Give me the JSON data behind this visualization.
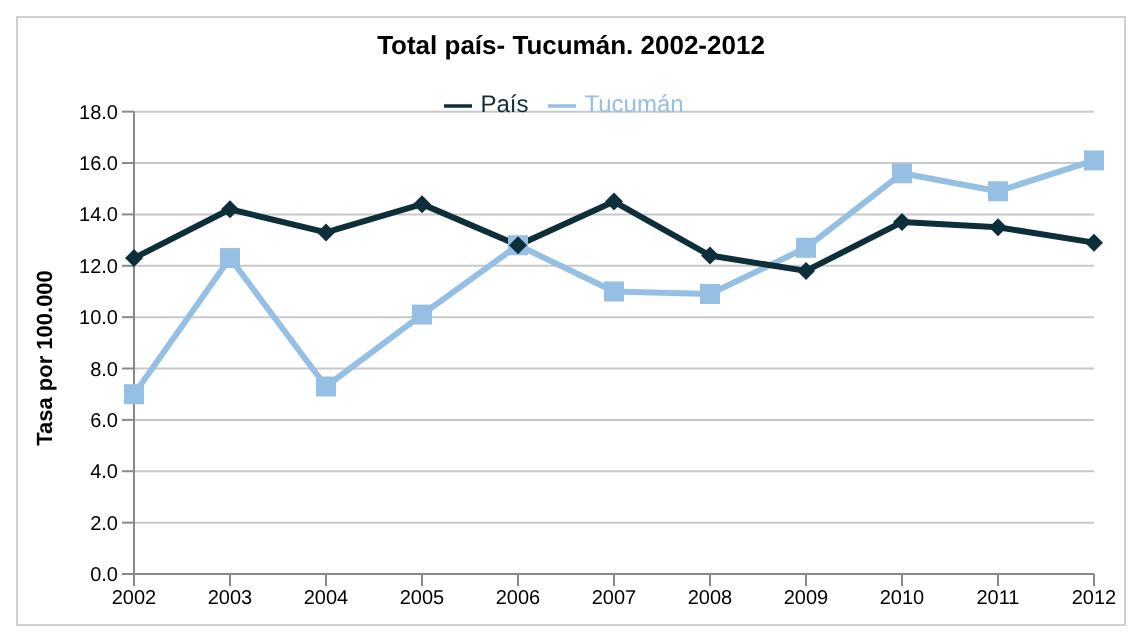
{
  "chart_data": {
    "type": "line",
    "title": "Total país- Tucumán. 2002-2012",
    "ylabel": "Tasa por 100.000",
    "categories": [
      "2002",
      "2003",
      "2004",
      "2005",
      "2006",
      "2007",
      "2008",
      "2009",
      "2010",
      "2011",
      "2012"
    ],
    "series": [
      {
        "name": "País",
        "color": "#0d2f3a",
        "marker": "diamond",
        "values": [
          12.3,
          14.2,
          13.3,
          14.4,
          12.8,
          14.5,
          12.4,
          11.8,
          13.7,
          13.5,
          12.9
        ]
      },
      {
        "name": "Tucumán",
        "color": "#95c0e4",
        "marker": "square",
        "values": [
          7.0,
          12.3,
          7.3,
          10.1,
          12.8,
          11.0,
          10.9,
          12.7,
          15.6,
          14.9,
          16.1
        ]
      }
    ],
    "ylim": [
      0,
      18
    ],
    "yticks": [
      {
        "value": 0,
        "label": "0.0"
      },
      {
        "value": 2,
        "label": "2.0"
      },
      {
        "value": 4,
        "label": "4.0"
      },
      {
        "value": 6,
        "label": "6.0"
      },
      {
        "value": 8,
        "label": "8.0"
      },
      {
        "value": 10,
        "label": "10.0"
      },
      {
        "value": 12,
        "label": "12.0"
      },
      {
        "value": 14,
        "label": "14.0"
      },
      {
        "value": 16,
        "label": "16.0"
      },
      {
        "value": 18,
        "label": "18.0"
      }
    ],
    "grid": "y",
    "legend": "top"
  }
}
